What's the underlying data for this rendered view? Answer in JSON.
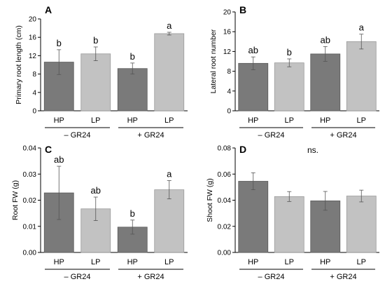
{
  "colors": {
    "HP": "#7a7a7a",
    "LP": "#c2c2c2",
    "HP_edge": "#5a5a5a",
    "LP_edge": "#9a9a9a"
  },
  "chart_data": [
    {
      "panel": "A",
      "type": "bar",
      "ylabel": "Primary root length (cm)",
      "ylim": [
        0,
        20
      ],
      "yticks": [
        "0",
        "4",
        "8",
        "12",
        "16",
        "20"
      ],
      "categories": [
        "HP",
        "LP",
        "HP",
        "LP"
      ],
      "groups": [
        "– GR24",
        "+ GR24"
      ],
      "values": [
        10.6,
        12.4,
        9.2,
        16.8
      ],
      "errors": [
        2.7,
        1.5,
        1.2,
        0.3
      ],
      "significance": [
        "b",
        "b",
        "b",
        "a"
      ]
    },
    {
      "panel": "B",
      "type": "bar",
      "ylabel": "Lateral root number",
      "ylim": [
        0,
        20
      ],
      "yticks": [
        "0",
        "4",
        "8",
        "12",
        "16",
        "20"
      ],
      "categories": [
        "HP",
        "LP",
        "HP",
        "LP"
      ],
      "groups": [
        "– GR24",
        "+ GR24"
      ],
      "values": [
        9.6,
        9.7,
        11.5,
        14.0
      ],
      "errors": [
        1.3,
        0.8,
        1.5,
        1.5
      ],
      "significance": [
        "ab",
        "b",
        "ab",
        "a"
      ]
    },
    {
      "panel": "C",
      "type": "bar",
      "ylabel": "Root FW (g)",
      "ylim": [
        0,
        0.04
      ],
      "yticks": [
        "0.00",
        "0.01",
        "0.02",
        "0.03",
        "0.04"
      ],
      "categories": [
        "HP",
        "LP",
        "HP",
        "LP"
      ],
      "groups": [
        "– GR24",
        "+ GR24"
      ],
      "values": [
        0.0228,
        0.0167,
        0.0097,
        0.024
      ],
      "errors": [
        0.0102,
        0.0045,
        0.0027,
        0.0035
      ],
      "significance": [
        "ab",
        "ab",
        "b",
        "a"
      ]
    },
    {
      "panel": "D",
      "type": "bar",
      "ylabel": "Shoot FW (g)",
      "ylim": [
        0,
        0.08
      ],
      "yticks": [
        "0.00",
        "0.02",
        "0.04",
        "0.06",
        "0.08"
      ],
      "categories": [
        "HP",
        "LP",
        "HP",
        "LP"
      ],
      "groups": [
        "– GR24",
        "+ GR24"
      ],
      "values": [
        0.0545,
        0.0428,
        0.0395,
        0.0432
      ],
      "errors": [
        0.0065,
        0.0038,
        0.0072,
        0.0045
      ],
      "significance": [
        "",
        "",
        "",
        ""
      ],
      "annotation": "ns."
    }
  ]
}
